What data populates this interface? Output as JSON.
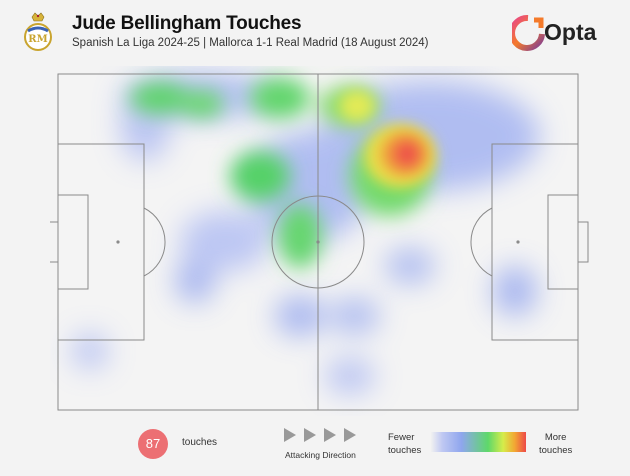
{
  "header": {
    "title": "Jude Bellingham Touches",
    "subtitle": "Spanish La Liga 2024-25 | Mallorca 1-1 Real Madrid (18 August 2024)",
    "brand": "Opta",
    "crest_icon": "real-madrid-crest-icon",
    "brand_icon": "opta-logo-icon"
  },
  "legend": {
    "touch_count": "87",
    "touch_label": "touches",
    "direction_label": "Attacking Direction",
    "fewer_label_line1": "Fewer",
    "fewer_label_line2": "touches",
    "more_label_line1": "More",
    "more_label_line2": "touches"
  },
  "colors": {
    "background": "#f3f3f3",
    "badge": "#ec6f73",
    "pitch_lines": "#8a8a8a",
    "brand_gradient": [
      "#e8458b",
      "#f47a2a",
      "#7d3c98"
    ]
  },
  "heatmap": {
    "type": "heatmap",
    "scale": "fewer-to-more touches (blue-green-yellow-red)"
  }
}
